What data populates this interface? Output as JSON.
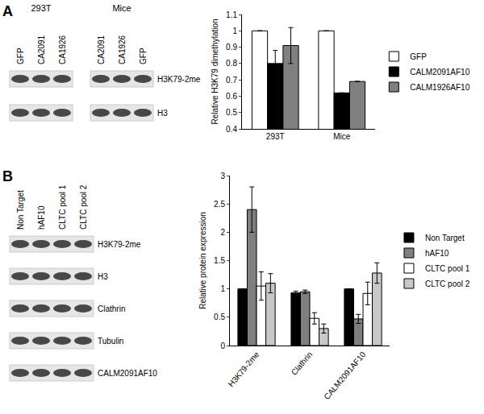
{
  "chart_data": [
    {
      "type": "bar",
      "ylabel": "Relative H3K79 dimethylation",
      "categories": [
        "293T",
        "Mice"
      ],
      "series": [
        {
          "name": "GFP",
          "color": "#ffffff",
          "values": [
            1,
            1
          ],
          "error": [
            null,
            null
          ]
        },
        {
          "name": "CALM2091AF10",
          "color": "#000000",
          "values": [
            0.8,
            0.62
          ],
          "error": [
            0.08,
            null
          ]
        },
        {
          "name": "CALM1926AF10",
          "color": "#808080",
          "values": [
            0.91,
            0.69
          ],
          "error": [
            0.11,
            null
          ]
        }
      ],
      "ylim": [
        0.4,
        1.1
      ],
      "yticks": [
        0.4,
        0.5,
        0.6,
        0.7,
        0.8,
        0.9,
        1,
        1.1
      ],
      "grid": false,
      "legend": "right"
    },
    {
      "type": "bar",
      "ylabel": "Relative protein expression",
      "categories": [
        "H3K79-2me",
        "Clathrin",
        "CALM2091AF10"
      ],
      "series": [
        {
          "name": "Non Target",
          "color": "#000000",
          "values": [
            1,
            0.93,
            1
          ],
          "error": [
            null,
            0.03,
            null
          ]
        },
        {
          "name": "hAF10",
          "color": "#7f7f7f",
          "values": [
            2.4,
            0.95,
            0.47
          ],
          "error": [
            0.4,
            0.03,
            0.08
          ]
        },
        {
          "name": "CLTC pool 1",
          "color": "#ffffff",
          "values": [
            1.05,
            0.48,
            0.92
          ],
          "error": [
            0.25,
            0.1,
            0.2
          ]
        },
        {
          "name": "CLTC pool 2",
          "color": "#c8c8c8",
          "values": [
            1.1,
            0.3,
            1.28
          ],
          "error": [
            0.17,
            0.08,
            0.18
          ]
        }
      ],
      "ylim": [
        0,
        3
      ],
      "yticks": [
        0,
        0.5,
        1,
        1.5,
        2,
        2.5,
        3
      ],
      "grid": false,
      "legend": "right"
    }
  ],
  "figure": {
    "panels": [
      {
        "label": "A",
        "blots": [
          {
            "title": "293T",
            "lanes": [
              "GFP",
              "CA2091",
              "CA1926"
            ]
          },
          {
            "title": "Mice",
            "lanes": [
              "CA2091",
              "CA1926",
              "GFP"
            ]
          }
        ],
        "rows": [
          "H3K79-2me",
          "H3"
        ]
      },
      {
        "label": "B",
        "blots": [
          {
            "lanes": [
              "Non Target",
              "hAF10",
              "CLTC pool 1",
              "CLTC pool 2"
            ]
          }
        ],
        "rows": [
          "H3K79-2me",
          "H3",
          "Clathrin",
          "Tubulin",
          "CALM2091AF10"
        ]
      }
    ]
  }
}
